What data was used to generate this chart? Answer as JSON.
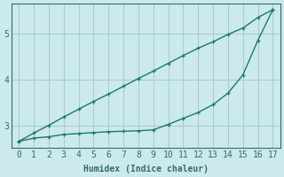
{
  "xlabel": "Humidex (Indice chaleur)",
  "bg_color": "#cce9ec",
  "line_color": "#1a7a6e",
  "grid_color": "#aacdd0",
  "axis_color": "#3a6a6a",
  "xlim": [
    -0.5,
    17.5
  ],
  "ylim": [
    2.5,
    5.65
  ],
  "xticks": [
    0,
    1,
    2,
    3,
    4,
    5,
    6,
    7,
    8,
    9,
    10,
    11,
    12,
    13,
    14,
    15,
    16,
    17
  ],
  "yticks": [
    3,
    4,
    5
  ],
  "line1_x": [
    0,
    1,
    2,
    3,
    4,
    5,
    6,
    7,
    8,
    9,
    10,
    11,
    12,
    13,
    14,
    15,
    16,
    17
  ],
  "line1_y": [
    2.65,
    2.83,
    3.0,
    3.18,
    3.35,
    3.52,
    3.68,
    3.85,
    4.02,
    4.18,
    4.35,
    4.52,
    4.68,
    4.82,
    4.98,
    5.12,
    5.35,
    5.52
  ],
  "line2_x": [
    0,
    1,
    2,
    3,
    4,
    5,
    6,
    7,
    8,
    9,
    10,
    11,
    12,
    13,
    14,
    15,
    16,
    17
  ],
  "line2_y": [
    2.65,
    2.72,
    2.75,
    2.8,
    2.82,
    2.84,
    2.86,
    2.87,
    2.88,
    2.9,
    3.02,
    3.15,
    3.28,
    3.45,
    3.7,
    4.1,
    4.85,
    5.52
  ]
}
